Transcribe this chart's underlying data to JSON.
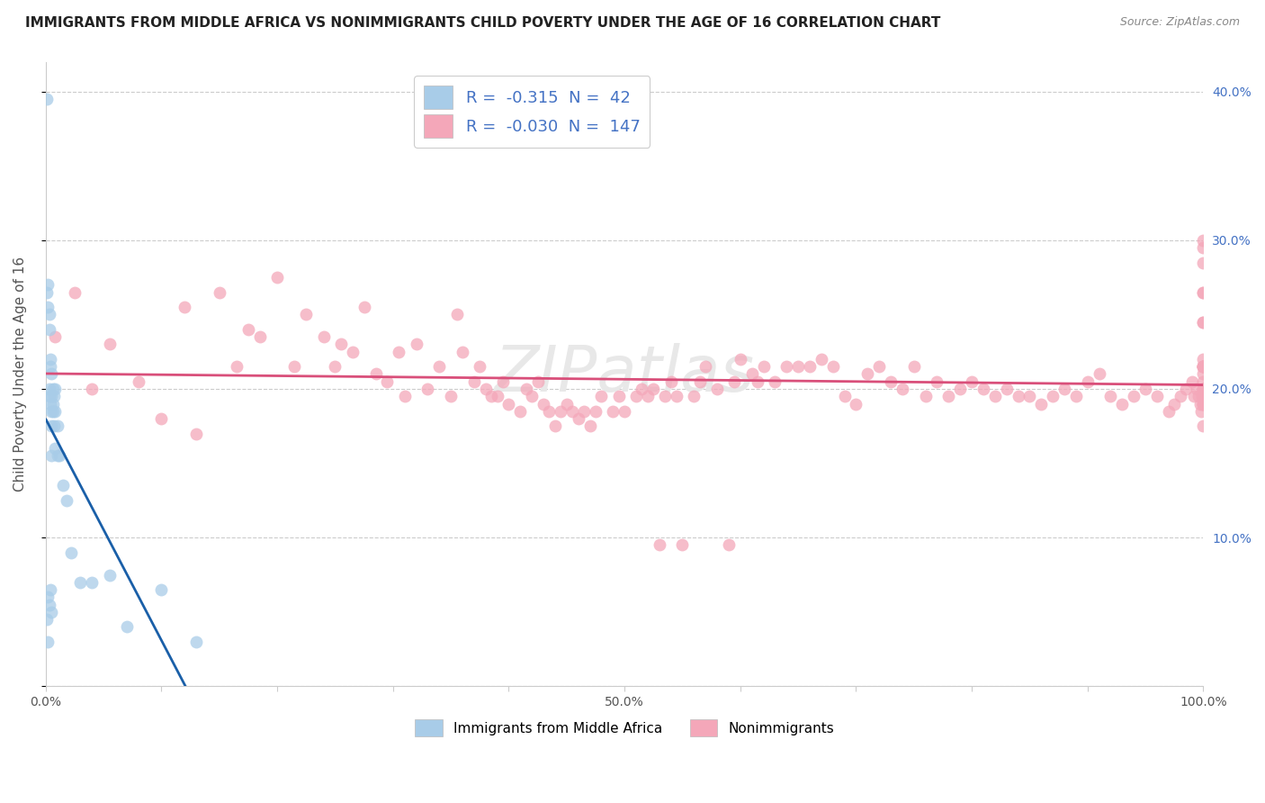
{
  "title": "IMMIGRANTS FROM MIDDLE AFRICA VS NONIMMIGRANTS CHILD POVERTY UNDER THE AGE OF 16 CORRELATION CHART",
  "source": "Source: ZipAtlas.com",
  "ylabel": "Child Poverty Under the Age of 16",
  "xlim": [
    0,
    1.0
  ],
  "ylim": [
    0,
    0.42
  ],
  "xticks": [
    0,
    0.1,
    0.2,
    0.3,
    0.4,
    0.5,
    0.6,
    0.7,
    0.8,
    0.9,
    1.0
  ],
  "xtick_labels": [
    "0.0%",
    "",
    "",
    "",
    "",
    "50.0%",
    "",
    "",
    "",
    "",
    "100.0%"
  ],
  "yticks": [
    0.0,
    0.1,
    0.2,
    0.3,
    0.4
  ],
  "ytick_labels_right": [
    "",
    "10.0%",
    "20.0%",
    "30.0%",
    "40.0%"
  ],
  "legend_R1": "-0.315",
  "legend_N1": "42",
  "legend_R2": "-0.030",
  "legend_N2": "147",
  "color_blue": "#a8cce8",
  "color_pink": "#f4a7b9",
  "color_blue_line": "#1a5fa8",
  "color_pink_line": "#d94f7a",
  "blue_scatter_x": [
    0.001,
    0.001,
    0.001,
    0.002,
    0.002,
    0.002,
    0.002,
    0.003,
    0.003,
    0.003,
    0.003,
    0.003,
    0.004,
    0.004,
    0.004,
    0.004,
    0.005,
    0.005,
    0.005,
    0.005,
    0.005,
    0.005,
    0.006,
    0.006,
    0.006,
    0.007,
    0.007,
    0.008,
    0.008,
    0.008,
    0.01,
    0.01,
    0.012,
    0.015,
    0.018,
    0.022,
    0.03,
    0.04,
    0.055,
    0.07,
    0.1,
    0.13
  ],
  "blue_scatter_y": [
    0.395,
    0.265,
    0.045,
    0.27,
    0.255,
    0.06,
    0.03,
    0.25,
    0.24,
    0.2,
    0.195,
    0.055,
    0.22,
    0.215,
    0.19,
    0.065,
    0.185,
    0.21,
    0.195,
    0.175,
    0.155,
    0.05,
    0.2,
    0.19,
    0.185,
    0.195,
    0.175,
    0.2,
    0.185,
    0.16,
    0.175,
    0.155,
    0.155,
    0.135,
    0.125,
    0.09,
    0.07,
    0.07,
    0.075,
    0.04,
    0.065,
    0.03
  ],
  "pink_scatter_x": [
    0.008,
    0.025,
    0.04,
    0.055,
    0.08,
    0.1,
    0.12,
    0.13,
    0.15,
    0.165,
    0.175,
    0.185,
    0.2,
    0.215,
    0.225,
    0.24,
    0.25,
    0.255,
    0.265,
    0.275,
    0.285,
    0.295,
    0.305,
    0.31,
    0.32,
    0.33,
    0.34,
    0.35,
    0.355,
    0.36,
    0.37,
    0.375,
    0.38,
    0.385,
    0.39,
    0.395,
    0.4,
    0.41,
    0.415,
    0.42,
    0.425,
    0.43,
    0.435,
    0.44,
    0.445,
    0.45,
    0.455,
    0.46,
    0.465,
    0.47,
    0.475,
    0.48,
    0.49,
    0.495,
    0.5,
    0.51,
    0.515,
    0.52,
    0.525,
    0.53,
    0.535,
    0.54,
    0.545,
    0.55,
    0.56,
    0.565,
    0.57,
    0.58,
    0.59,
    0.595,
    0.6,
    0.61,
    0.615,
    0.62,
    0.63,
    0.64,
    0.65,
    0.66,
    0.67,
    0.68,
    0.69,
    0.7,
    0.71,
    0.72,
    0.73,
    0.74,
    0.75,
    0.76,
    0.77,
    0.78,
    0.79,
    0.8,
    0.81,
    0.82,
    0.83,
    0.84,
    0.85,
    0.86,
    0.87,
    0.88,
    0.89,
    0.9,
    0.91,
    0.92,
    0.93,
    0.94,
    0.95,
    0.96,
    0.97,
    0.975,
    0.98,
    0.985,
    0.99,
    0.992,
    0.994,
    0.996,
    0.997,
    0.998,
    0.999,
    1.0,
    1.0,
    1.0,
    1.0,
    1.0,
    1.0,
    1.0,
    1.0,
    1.0,
    1.0,
    1.0,
    1.0,
    1.0,
    1.0,
    1.0,
    1.0,
    1.0,
    1.0,
    1.0,
    1.0,
    1.0,
    1.0,
    1.0,
    1.0,
    1.0,
    1.0,
    1.0,
    1.0
  ],
  "pink_scatter_y": [
    0.235,
    0.265,
    0.2,
    0.23,
    0.205,
    0.18,
    0.255,
    0.17,
    0.265,
    0.215,
    0.24,
    0.235,
    0.275,
    0.215,
    0.25,
    0.235,
    0.215,
    0.23,
    0.225,
    0.255,
    0.21,
    0.205,
    0.225,
    0.195,
    0.23,
    0.2,
    0.215,
    0.195,
    0.25,
    0.225,
    0.205,
    0.215,
    0.2,
    0.195,
    0.195,
    0.205,
    0.19,
    0.185,
    0.2,
    0.195,
    0.205,
    0.19,
    0.185,
    0.175,
    0.185,
    0.19,
    0.185,
    0.18,
    0.185,
    0.175,
    0.185,
    0.195,
    0.185,
    0.195,
    0.185,
    0.195,
    0.2,
    0.195,
    0.2,
    0.095,
    0.195,
    0.205,
    0.195,
    0.095,
    0.195,
    0.205,
    0.215,
    0.2,
    0.095,
    0.205,
    0.22,
    0.21,
    0.205,
    0.215,
    0.205,
    0.215,
    0.215,
    0.215,
    0.22,
    0.215,
    0.195,
    0.19,
    0.21,
    0.215,
    0.205,
    0.2,
    0.215,
    0.195,
    0.205,
    0.195,
    0.2,
    0.205,
    0.2,
    0.195,
    0.2,
    0.195,
    0.195,
    0.19,
    0.195,
    0.2,
    0.195,
    0.205,
    0.21,
    0.195,
    0.19,
    0.195,
    0.2,
    0.195,
    0.185,
    0.19,
    0.195,
    0.2,
    0.205,
    0.195,
    0.2,
    0.195,
    0.19,
    0.185,
    0.195,
    0.19,
    0.2,
    0.195,
    0.195,
    0.195,
    0.215,
    0.21,
    0.215,
    0.205,
    0.195,
    0.2,
    0.175,
    0.19,
    0.215,
    0.22,
    0.2,
    0.195,
    0.295,
    0.285,
    0.265,
    0.215,
    0.245,
    0.265,
    0.215,
    0.195,
    0.19,
    0.245,
    0.3
  ],
  "watermark": "ZIPatlas",
  "bg_color": "#ffffff",
  "grid_color": "#cccccc",
  "title_color": "#222222",
  "label_color": "#555555",
  "tick_color_right": "#4472C4"
}
